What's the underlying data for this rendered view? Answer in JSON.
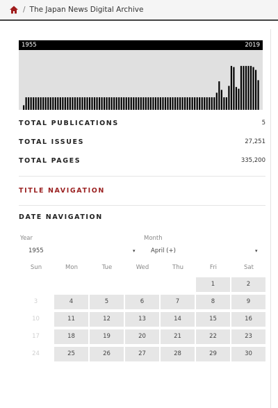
{
  "breadcrumb": {
    "home_icon": "home-icon",
    "separator": "/",
    "title": "The Japan News Digital Archive"
  },
  "chart_data": {
    "type": "bar",
    "start_label": "1955",
    "end_label": "2019",
    "x_range": [
      1955,
      2019
    ],
    "ylim": [
      0,
      100
    ],
    "bar_color": "#000000",
    "background_color": "#e0e0e0",
    "values": [
      8,
      22,
      22,
      22,
      22,
      22,
      22,
      22,
      22,
      22,
      22,
      22,
      22,
      22,
      22,
      22,
      22,
      22,
      22,
      22,
      22,
      22,
      22,
      22,
      22,
      22,
      22,
      22,
      22,
      22,
      22,
      22,
      22,
      22,
      22,
      22,
      22,
      22,
      22,
      22,
      22,
      22,
      22,
      22,
      22,
      22,
      22,
      22,
      22,
      22,
      22,
      22,
      22,
      22,
      22,
      22,
      22,
      22,
      22,
      22,
      22,
      22,
      22,
      22,
      22,
      22,
      22,
      22,
      22,
      22,
      22,
      22,
      22,
      22,
      22,
      22,
      22,
      22,
      22,
      30,
      50,
      35,
      22,
      22,
      42,
      77,
      75,
      40,
      37,
      77,
      77,
      77,
      77,
      77,
      75,
      70,
      52
    ]
  },
  "stats": {
    "publications": {
      "label": "TOTAL PUBLICATIONS",
      "value": "5"
    },
    "issues": {
      "label": "TOTAL ISSUES",
      "value": "27,251"
    },
    "pages": {
      "label": "TOTAL PAGES",
      "value": "335,200"
    }
  },
  "title_nav": {
    "label": "TITLE NAVIGATION",
    "color": "#9b2222"
  },
  "date_nav": {
    "label": "DATE NAVIGATION",
    "year_label": "Year",
    "year_value": "1955",
    "month_label": "Month",
    "month_value": "April (+)",
    "caret": "▾"
  },
  "calendar": {
    "weekdays": [
      "Sun",
      "Mon",
      "Tue",
      "Wed",
      "Thu",
      "Fri",
      "Sat"
    ],
    "weeks": [
      [
        "",
        "",
        "",
        "",
        "",
        "1",
        "2"
      ],
      [
        "3",
        "4",
        "5",
        "6",
        "7",
        "8",
        "9"
      ],
      [
        "10",
        "11",
        "12",
        "13",
        "14",
        "15",
        "16"
      ],
      [
        "17",
        "18",
        "19",
        "20",
        "21",
        "22",
        "23"
      ],
      [
        "24",
        "25",
        "26",
        "27",
        "28",
        "29",
        "30"
      ]
    ]
  }
}
